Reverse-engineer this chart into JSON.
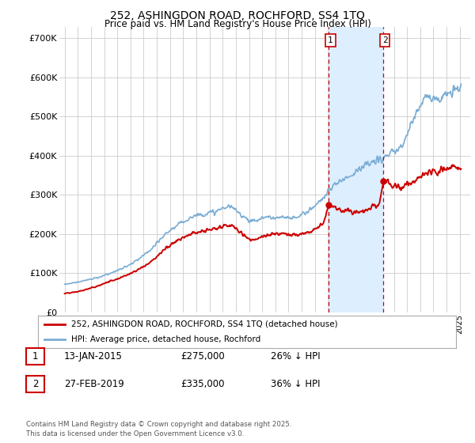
{
  "title1": "252, ASHINGDON ROAD, ROCHFORD, SS4 1TQ",
  "title2": "Price paid vs. HM Land Registry's House Price Index (HPI)",
  "ytick_labels": [
    "£0",
    "£100K",
    "£200K",
    "£300K",
    "£400K",
    "£500K",
    "£600K",
    "£700K"
  ],
  "yticks": [
    0,
    100000,
    200000,
    300000,
    400000,
    500000,
    600000,
    700000
  ],
  "legend_line1": "252, ASHINGDON ROAD, ROCHFORD, SS4 1TQ (detached house)",
  "legend_line2": "HPI: Average price, detached house, Rochford",
  "line1_color": "#cc0000",
  "line2_color": "#7aadd4",
  "shade_color": "#ddeeff",
  "vline_color": "#cc0000",
  "annotation1_date": "13-JAN-2015",
  "annotation1_price": "£275,000",
  "annotation1_hpi": "26% ↓ HPI",
  "annotation2_date": "27-FEB-2019",
  "annotation2_price": "£335,000",
  "annotation2_hpi": "36% ↓ HPI",
  "footer": "Contains HM Land Registry data © Crown copyright and database right 2025.\nThis data is licensed under the Open Government Licence v3.0.",
  "background_color": "#ffffff",
  "grid_color": "#cccccc",
  "vline1_x": 2015.04,
  "vline2_x": 2019.17,
  "marker1_y": 275000,
  "marker2_y": 335000,
  "ylim_max": 730000,
  "xlim_min": 1994.6,
  "xlim_max": 2025.8
}
